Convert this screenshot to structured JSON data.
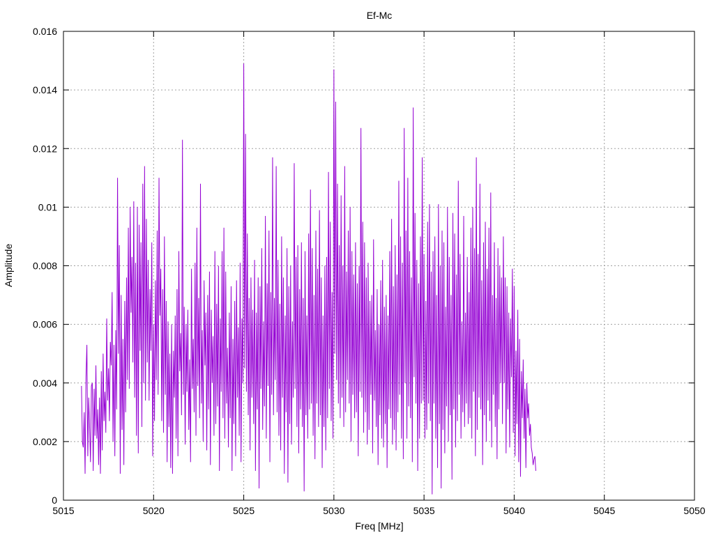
{
  "chart_data": {
    "type": "line",
    "title": "Ef-Mc",
    "xlabel": "Freq [MHz]",
    "ylabel": "Amplitude",
    "xlim": [
      5015,
      5050
    ],
    "ylim": [
      0,
      0.016
    ],
    "x_ticks": [
      "5015",
      "5020",
      "5025",
      "5030",
      "5035",
      "5040",
      "5045",
      "5050"
    ],
    "y_ticks": [
      "0",
      "0.002",
      "0.004",
      "0.006",
      "0.008",
      "0.01",
      "0.012",
      "0.014",
      "0.016"
    ],
    "grid": true,
    "line_color": "#9400d3",
    "series": [
      {
        "name": "",
        "x_start": 5016.0,
        "x_step": 0.05,
        "values": [
          0.0039,
          0.002,
          0.0018,
          0.003,
          0.0009,
          0.0042,
          0.0053,
          0.0015,
          0.0035,
          0.0025,
          0.0013,
          0.0039,
          0.004,
          0.001,
          0.0038,
          0.0022,
          0.0046,
          0.0021,
          0.0031,
          0.0012,
          0.0035,
          0.0009,
          0.0044,
          0.0017,
          0.005,
          0.0027,
          0.0037,
          0.0023,
          0.0062,
          0.0034,
          0.0045,
          0.0027,
          0.0054,
          0.0046,
          0.0071,
          0.002,
          0.0053,
          0.0015,
          0.0058,
          0.0031,
          0.011,
          0.005,
          0.0087,
          0.0009,
          0.007,
          0.0024,
          0.0055,
          0.0012,
          0.0068,
          0.003,
          0.0076,
          0.0041,
          0.0093,
          0.0038,
          0.01,
          0.0064,
          0.0083,
          0.0047,
          0.0102,
          0.0035,
          0.0081,
          0.0022,
          0.01,
          0.0016,
          0.0094,
          0.0051,
          0.0088,
          0.0025,
          0.0108,
          0.004,
          0.0114,
          0.0034,
          0.0096,
          0.0047,
          0.0082,
          0.0034,
          0.0072,
          0.0051,
          0.0088,
          0.0015,
          0.006,
          0.0027,
          0.0075,
          0.0041,
          0.0092,
          0.0036,
          0.011,
          0.0063,
          0.0079,
          0.0027,
          0.0072,
          0.0023,
          0.009,
          0.0036,
          0.0068,
          0.0013,
          0.0061,
          0.0025,
          0.005,
          0.0011,
          0.006,
          0.0009,
          0.0051,
          0.0035,
          0.0063,
          0.0021,
          0.0072,
          0.0015,
          0.0085,
          0.0044,
          0.0057,
          0.0029,
          0.0123,
          0.0036,
          0.0066,
          0.0019,
          0.006,
          0.0037,
          0.0065,
          0.0024,
          0.0048,
          0.0013,
          0.0079,
          0.0038,
          0.0055,
          0.003,
          0.0081,
          0.0022,
          0.0093,
          0.0039,
          0.0069,
          0.0028,
          0.0108,
          0.0033,
          0.0058,
          0.002,
          0.0075,
          0.0046,
          0.0064,
          0.0017,
          0.007,
          0.0031,
          0.0078,
          0.0012,
          0.0065,
          0.004,
          0.0056,
          0.0022,
          0.0085,
          0.0026,
          0.0067,
          0.0032,
          0.008,
          0.001,
          0.0062,
          0.0037,
          0.0085,
          0.0028,
          0.0093,
          0.0021,
          0.0078,
          0.0033,
          0.0052,
          0.0018,
          0.0064,
          0.0028,
          0.0073,
          0.001,
          0.0055,
          0.0026,
          0.0068,
          0.0015,
          0.0075,
          0.0035,
          0.0059,
          0.0022,
          0.0081,
          0.0013,
          0.0062,
          0.004,
          0.0149,
          0.0045,
          0.0125,
          0.0037,
          0.0091,
          0.0029,
          0.0069,
          0.0017,
          0.0076,
          0.0035,
          0.0065,
          0.0026,
          0.0082,
          0.001,
          0.0064,
          0.0031,
          0.0076,
          0.0004,
          0.0073,
          0.0038,
          0.0086,
          0.0024,
          0.0061,
          0.0032,
          0.0097,
          0.0021,
          0.0074,
          0.0039,
          0.0092,
          0.0013,
          0.0071,
          0.0036,
          0.0117,
          0.0029,
          0.0069,
          0.0041,
          0.0114,
          0.003,
          0.0082,
          0.0022,
          0.0067,
          0.0017,
          0.009,
          0.0035,
          0.0076,
          0.0009,
          0.0063,
          0.003,
          0.0086,
          0.0006,
          0.0073,
          0.0026,
          0.008,
          0.0019,
          0.0061,
          0.0035,
          0.0115,
          0.0038,
          0.0083,
          0.0025,
          0.0087,
          0.0016,
          0.0072,
          0.0031,
          0.0088,
          0.0025,
          0.0069,
          0.0003,
          0.0085,
          0.0029,
          0.0063,
          0.0021,
          0.0091,
          0.0031,
          0.0106,
          0.0033,
          0.0086,
          0.0022,
          0.007,
          0.0014,
          0.0092,
          0.0033,
          0.0079,
          0.0025,
          0.0099,
          0.0029,
          0.0076,
          0.0011,
          0.0063,
          0.0025,
          0.008,
          0.0017,
          0.0083,
          0.0028,
          0.0112,
          0.0038,
          0.0095,
          0.0027,
          0.0071,
          0.0021,
          0.0147,
          0.005,
          0.0136,
          0.0041,
          0.0108,
          0.0033,
          0.0087,
          0.0028,
          0.0104,
          0.0035,
          0.008,
          0.0025,
          0.0114,
          0.003,
          0.0078,
          0.0041,
          0.0092,
          0.0033,
          0.01,
          0.002,
          0.0085,
          0.0036,
          0.0077,
          0.0028,
          0.0088,
          0.003,
          0.0074,
          0.0015,
          0.008,
          0.0037,
          0.0127,
          0.0035,
          0.0095,
          0.0023,
          0.0088,
          0.003,
          0.0076,
          0.0019,
          0.0081,
          0.0024,
          0.0068,
          0.0036,
          0.007,
          0.0016,
          0.0089,
          0.0034,
          0.0058,
          0.0025,
          0.0072,
          0.0012,
          0.006,
          0.0029,
          0.0075,
          0.0021,
          0.0082,
          0.0018,
          0.0066,
          0.0026,
          0.007,
          0.0011,
          0.0063,
          0.0031,
          0.0085,
          0.0028,
          0.0096,
          0.0019,
          0.0073,
          0.0024,
          0.0087,
          0.0017,
          0.0077,
          0.003,
          0.0109,
          0.0036,
          0.009,
          0.0021,
          0.0081,
          0.0014,
          0.0127,
          0.004,
          0.0092,
          0.0021,
          0.011,
          0.0032,
          0.0085,
          0.0028,
          0.0076,
          0.0013,
          0.0134,
          0.0042,
          0.0098,
          0.0033,
          0.0082,
          0.001,
          0.0074,
          0.0021,
          0.009,
          0.0033,
          0.0117,
          0.0034,
          0.0084,
          0.0021,
          0.0068,
          0.0024,
          0.0095,
          0.0033,
          0.0101,
          0.0027,
          0.0078,
          0.0002,
          0.0085,
          0.0033,
          0.009,
          0.0021,
          0.007,
          0.0011,
          0.0101,
          0.0026,
          0.008,
          0.0004,
          0.0092,
          0.0024,
          0.0088,
          0.0016,
          0.0066,
          0.0032,
          0.01,
          0.002,
          0.0083,
          0.0029,
          0.007,
          0.0007,
          0.0098,
          0.0031,
          0.0091,
          0.0018,
          0.0077,
          0.0027,
          0.0109,
          0.0036,
          0.0084,
          0.0021,
          0.0061,
          0.003,
          0.0097,
          0.0025,
          0.0064,
          0.0033,
          0.0083,
          0.0026,
          0.0071,
          0.0028,
          0.0093,
          0.0021,
          0.01,
          0.0037,
          0.0086,
          0.0015,
          0.0117,
          0.0024,
          0.0084,
          0.0035,
          0.0108,
          0.0031,
          0.0075,
          0.0012,
          0.0088,
          0.0029,
          0.0095,
          0.002,
          0.0079,
          0.0034,
          0.0093,
          0.0027,
          0.0105,
          0.0018,
          0.007,
          0.0036,
          0.0088,
          0.0025,
          0.0069,
          0.0014,
          0.0086,
          0.0031,
          0.008,
          0.004,
          0.0076,
          0.0026,
          0.009,
          0.004,
          0.0076,
          0.0016,
          0.0073,
          0.0031,
          0.0064,
          0.0018,
          0.0062,
          0.0042,
          0.0079,
          0.0023,
          0.0073,
          0.0015,
          0.0051,
          0.0026,
          0.0065,
          0.0013,
          0.0055,
          0.0008,
          0.0044,
          0.0028,
          0.0048,
          0.0021,
          0.0038,
          0.0011,
          0.004,
          0.0028,
          0.0033,
          0.0022,
          0.0026,
          0.0018,
          0.0016,
          0.0012,
          0.0014,
          0.0015,
          0.001
        ]
      }
    ]
  }
}
